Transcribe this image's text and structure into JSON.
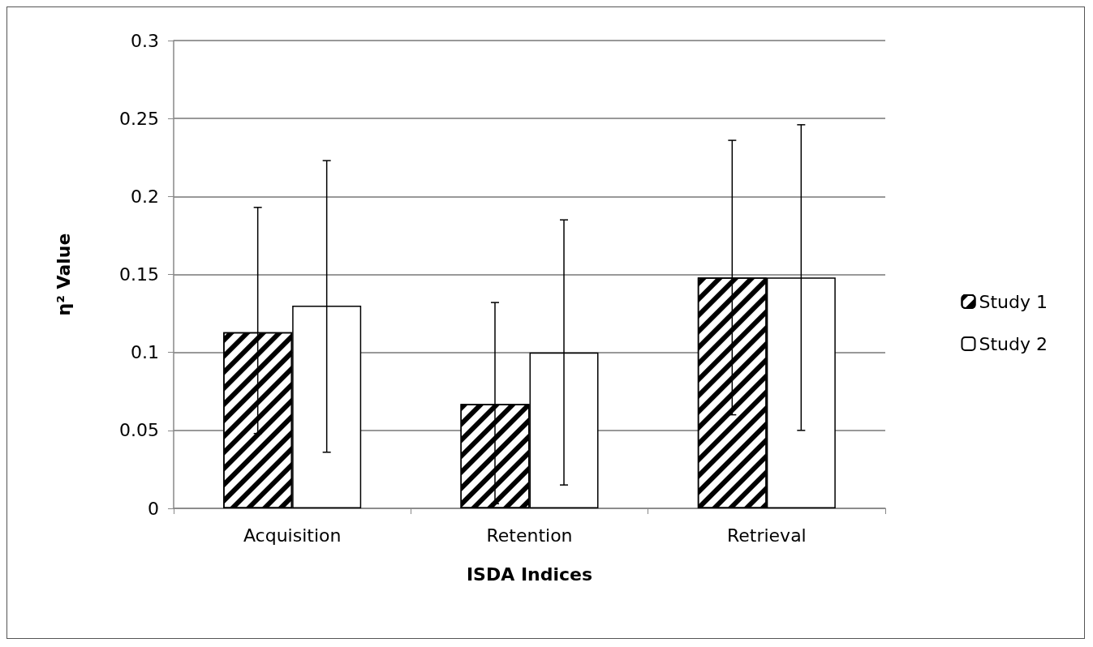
{
  "chart_data": {
    "type": "bar",
    "xlabel": "ISDA Indices",
    "ylabel": "η² Value",
    "categories": [
      "Acquisition",
      "Retention",
      "Retrieval"
    ],
    "series": [
      {
        "name": "Study 1",
        "color": "#000000",
        "values": [
          0.113,
          0.067,
          0.148
        ],
        "errors": [
          [
            0.048,
            0.193
          ],
          [
            0.003,
            0.132
          ],
          [
            0.06,
            0.236
          ]
        ]
      },
      {
        "name": "Study 2",
        "color": "#ffffff",
        "values": [
          0.13,
          0.1,
          0.148
        ],
        "errors": [
          [
            0.036,
            0.223
          ],
          [
            0.015,
            0.185
          ],
          [
            0.05,
            0.246
          ]
        ]
      }
    ],
    "ylim": [
      0,
      0.3
    ],
    "yticks": [
      0,
      0.05,
      0.1,
      0.15,
      0.2,
      0.25,
      0.3
    ],
    "grid": "y",
    "legend": "right"
  }
}
